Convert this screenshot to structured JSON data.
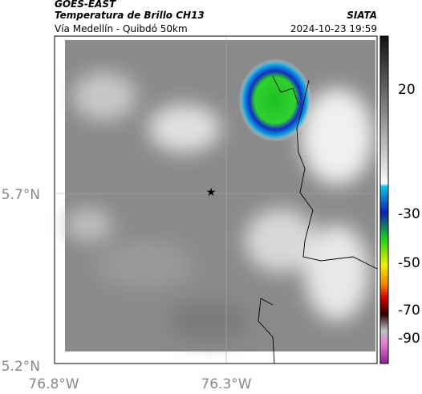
{
  "header": {
    "source": "GOES-EAST",
    "product": "Temperatura de Brillo CH13",
    "org": "SIATA",
    "region": "Vía Medellín - Quibdó 50km",
    "datetime": "2024-10-23 19:59"
  },
  "map": {
    "lat_labels": [
      "5.7°N",
      "5.2°N"
    ],
    "lon_labels": [
      "76.8°W",
      "76.3°W"
    ]
  },
  "colorbar": {
    "labels": [
      20,
      -30,
      -50,
      -70,
      -90
    ]
  }
}
